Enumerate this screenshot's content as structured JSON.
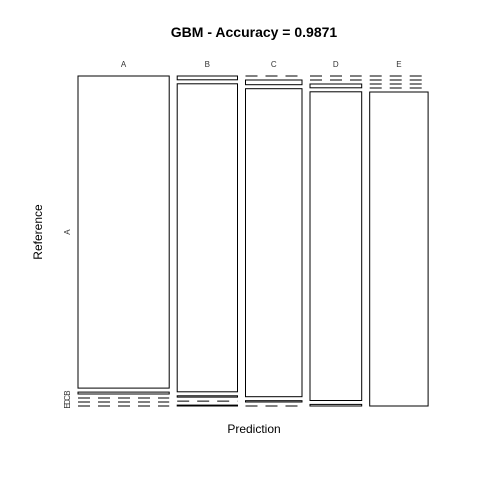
{
  "chart_data": {
    "type": "mosaic",
    "title": "GBM - Accuracy = 0.9871",
    "xlabel": "Prediction",
    "ylabel": "Reference",
    "prediction_levels": [
      "A",
      "B",
      "C",
      "D",
      "E"
    ],
    "reference_levels": [
      "A",
      "B",
      "C",
      "D",
      "E"
    ],
    "x_tick_labels": [
      "A",
      "B",
      "C",
      "D",
      "E"
    ],
    "y_tick_labels": [
      "A",
      "B",
      "C",
      "D",
      "E"
    ],
    "column_proportions": [
      0.284,
      0.188,
      0.176,
      0.161,
      0.182
    ],
    "conditional_proportions": {
      "A": [
        0.994,
        0.006,
        0.0,
        0.0,
        0.0
      ],
      "B": [
        0.012,
        0.981,
        0.004,
        0.0,
        0.003
      ],
      "C": [
        0.0,
        0.015,
        0.981,
        0.004,
        0.0
      ],
      "D": [
        0.0,
        0.0,
        0.012,
        0.983,
        0.005
      ],
      "E": [
        0.0,
        0.0,
        0.0,
        0.0,
        1.0
      ]
    },
    "stroke": "#000000",
    "fill": "#ffffff",
    "grid": false,
    "legend": "none"
  }
}
